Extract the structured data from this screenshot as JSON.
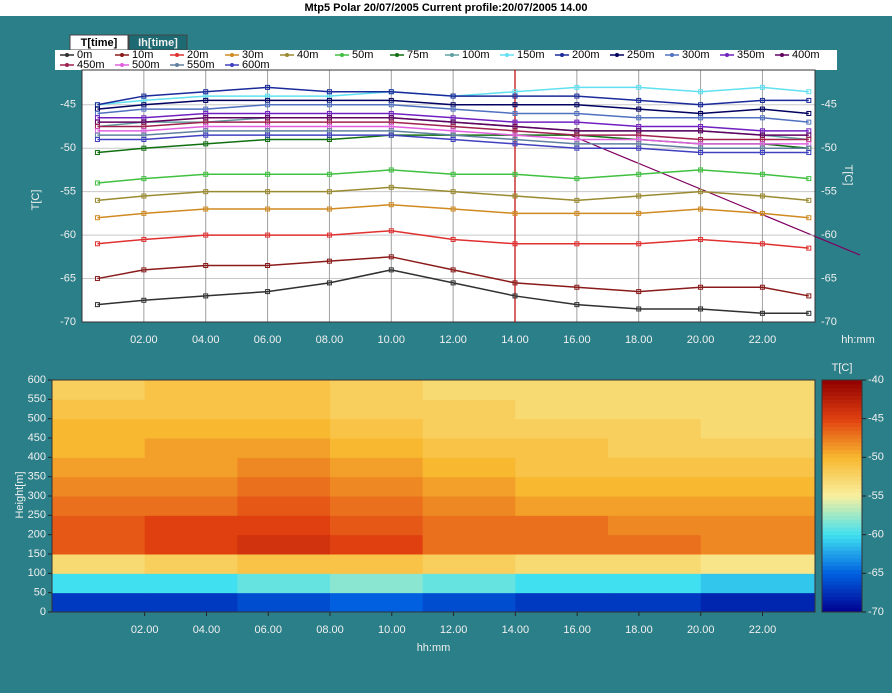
{
  "window_title": "Mtp5 Polar 20/07/2005 Current profile:20/07/2005 14.00",
  "tabs": [
    "T[time]",
    "Ih[time]"
  ],
  "chart_data": [
    {
      "type": "line",
      "xlabel": "hh:mm",
      "ylabel": "T[C]",
      "y2label": "T[C]",
      "x": [
        0.5,
        2,
        4,
        6,
        8,
        10,
        12,
        14,
        16,
        18,
        20,
        22,
        23.5
      ],
      "xlim": [
        0,
        23.7
      ],
      "xticks": [
        {
          "value": 2,
          "label": "02.00"
        },
        {
          "value": 4,
          "label": "04.00"
        },
        {
          "value": 6,
          "label": "06.00"
        },
        {
          "value": 8,
          "label": "08.00"
        },
        {
          "value": 10,
          "label": "10.00"
        },
        {
          "value": 12,
          "label": "12.00"
        },
        {
          "value": 14,
          "label": "14.00"
        },
        {
          "value": 16,
          "label": "16.00"
        },
        {
          "value": 18,
          "label": "18.00"
        },
        {
          "value": 20,
          "label": "20.00"
        },
        {
          "value": 22,
          "label": "22.00"
        }
      ],
      "ylim": [
        -70,
        -41
      ],
      "yticks": [
        -45,
        -50,
        -55,
        -60,
        -65,
        -70
      ],
      "grid": true,
      "marker_x": 14,
      "series": [
        {
          "name": "0m",
          "color": "#303030",
          "values": [
            -68,
            -67.5,
            -67,
            -66.5,
            -65.5,
            -64,
            -65.5,
            -67,
            -68,
            -68.5,
            -68.5,
            -69,
            -69
          ]
        },
        {
          "name": "10m",
          "color": "#8b1a1a",
          "values": [
            -65,
            -64,
            -63.5,
            -63.5,
            -63,
            -62.5,
            -64,
            -65.5,
            -66,
            -66.5,
            -66,
            -66,
            -67
          ]
        },
        {
          "name": "20m",
          "color": "#e03030",
          "values": [
            -61,
            -60.5,
            -60,
            -60,
            -60,
            -59.5,
            -60.5,
            -61,
            -61,
            -61,
            -60.5,
            -61,
            -61.5
          ]
        },
        {
          "name": "30m",
          "color": "#d08a20",
          "values": [
            -58,
            -57.5,
            -57,
            -57,
            -57,
            -56.5,
            -57,
            -57.5,
            -57.5,
            -57.5,
            -57,
            -57.5,
            -58
          ]
        },
        {
          "name": "40m",
          "color": "#9a8a30",
          "values": [
            -56,
            -55.5,
            -55,
            -55,
            -55,
            -54.5,
            -55,
            -55.5,
            -56,
            -55.5,
            -55,
            -55.5,
            -56
          ]
        },
        {
          "name": "50m",
          "color": "#40c040",
          "values": [
            -54,
            -53.5,
            -53,
            -53,
            -53,
            -52.5,
            -53,
            -53,
            -53.5,
            -53,
            -52.5,
            -53,
            -53.5
          ]
        },
        {
          "name": "75m",
          "color": "#107010",
          "values": [
            -50.5,
            -50,
            -49.5,
            -49,
            -49,
            -48.5,
            -48.5,
            -48.5,
            -48.5,
            -49,
            -49.5,
            -49.5,
            -50
          ]
        },
        {
          "name": "100m",
          "color": "#60a0a0",
          "values": [
            -47.5,
            -47,
            -47,
            -46.5,
            -46.5,
            -46.5,
            -47,
            -47.5,
            -48,
            -48,
            -48,
            -48.5,
            -49
          ]
        },
        {
          "name": "150m",
          "color": "#60e0f0",
          "values": [
            -45,
            -44.5,
            -44,
            -44,
            -44,
            -43.5,
            -44,
            -43.5,
            -43,
            -43,
            -43.5,
            -43,
            -43.5
          ]
        },
        {
          "name": "200m",
          "color": "#1a2a9a",
          "values": [
            -45,
            -44,
            -43.5,
            -43,
            -43.5,
            -43.5,
            -44,
            -44,
            -44,
            -44.5,
            -45,
            -44.5,
            -44.5
          ]
        },
        {
          "name": "250m",
          "color": "#000060",
          "values": [
            -45.5,
            -45,
            -44.5,
            -44.5,
            -44.5,
            -44.5,
            -45,
            -45,
            -45,
            -45.5,
            -46,
            -45.5,
            -46
          ]
        },
        {
          "name": "300m",
          "color": "#5070c0",
          "values": [
            -46,
            -45.5,
            -45.5,
            -45,
            -45,
            -45,
            -45.5,
            -46,
            -46,
            -46.5,
            -46.5,
            -46.5,
            -47
          ]
        },
        {
          "name": "350m",
          "color": "#7020c0",
          "values": [
            -46.5,
            -46.5,
            -46,
            -46,
            -46,
            -46,
            -46.5,
            -47,
            -47,
            -47.5,
            -47.5,
            -48,
            -48
          ]
        },
        {
          "name": "400m",
          "color": "#600060",
          "values": [
            -47,
            -47,
            -46.5,
            -46.5,
            -46.5,
            -46.5,
            -47,
            -47.5,
            -48,
            -48,
            -48,
            -48.5,
            -48.5
          ]
        },
        {
          "name": "450m",
          "color": "#a02050",
          "values": [
            -47.5,
            -47.5,
            -47,
            -47,
            -47,
            -47,
            -47.5,
            -48,
            -48.5,
            -48.5,
            -49,
            -49,
            -49
          ]
        },
        {
          "name": "500m",
          "color": "#e060e0",
          "values": [
            -48,
            -48,
            -47.5,
            -47.5,
            -47.5,
            -47.5,
            -48,
            -48.5,
            -49,
            -49,
            -49.5,
            -49.5,
            -49.5
          ]
        },
        {
          "name": "550m",
          "color": "#6080a0",
          "values": [
            -48.5,
            -48.5,
            -48,
            -48,
            -48,
            -48,
            -48.5,
            -49,
            -49.5,
            -49.5,
            -50,
            -50,
            -50
          ]
        },
        {
          "name": "600m",
          "color": "#4040c0",
          "values": [
            -49,
            -49,
            -48.5,
            -48.5,
            -48.5,
            -48.5,
            -49,
            -49.5,
            -50,
            -50,
            -50.5,
            -50.5,
            -50.5
          ]
        }
      ]
    },
    {
      "type": "heatmap",
      "xlabel": "hh:mm",
      "ylabel": "Height[m]",
      "zlabel": "T[C]",
      "x_bins": [
        -1,
        2,
        5,
        8,
        11,
        14,
        17,
        20,
        23.7
      ],
      "y_bins": [
        0,
        50,
        100,
        150,
        200,
        250,
        300,
        350,
        400,
        450,
        500,
        550,
        600
      ],
      "xlim": [
        -1,
        23.7
      ],
      "xticks": [
        {
          "value": 2,
          "label": "02.00"
        },
        {
          "value": 4,
          "label": "04.00"
        },
        {
          "value": 6,
          "label": "06.00"
        },
        {
          "value": 8,
          "label": "08.00"
        },
        {
          "value": 10,
          "label": "10.00"
        },
        {
          "value": 12,
          "label": "12.00"
        },
        {
          "value": 14,
          "label": "14.00"
        },
        {
          "value": 16,
          "label": "16.00"
        },
        {
          "value": 18,
          "label": "18.00"
        },
        {
          "value": 20,
          "label": "20.00"
        },
        {
          "value": 22,
          "label": "22.00"
        }
      ],
      "ylim": [
        0,
        600
      ],
      "yticks": [
        0,
        50,
        100,
        150,
        200,
        250,
        300,
        350,
        400,
        450,
        500,
        550,
        600
      ],
      "zlim": [
        -70,
        -40
      ],
      "zticks": [
        -40,
        -45,
        -50,
        -55,
        -60,
        -65,
        -70
      ],
      "colorscale": [
        "#000090",
        "#0060e0",
        "#40e0f0",
        "#f8f0a0",
        "#f8b830",
        "#e04010",
        "#900000"
      ],
      "z": [
        [
          -67,
          -67,
          -66,
          -65,
          -66,
          -67,
          -67,
          -68
        ],
        [
          -60,
          -60,
          -59,
          -58,
          -59,
          -60,
          -60,
          -61
        ],
        [
          -53,
          -52,
          -51,
          -51,
          -52,
          -53,
          -53,
          -54
        ],
        [
          -46,
          -45,
          -44,
          -45,
          -47,
          -47,
          -47,
          -48
        ],
        [
          -46,
          -45,
          -45,
          -46,
          -47,
          -47,
          -48,
          -48
        ],
        [
          -47,
          -47,
          -46,
          -47,
          -48,
          -49,
          -49,
          -49
        ],
        [
          -48,
          -48,
          -47,
          -48,
          -49,
          -50,
          -50,
          -50
        ],
        [
          -49,
          -49,
          -48,
          -49,
          -50,
          -51,
          -51,
          -51
        ],
        [
          -50,
          -49,
          -49,
          -50,
          -51,
          -51,
          -52,
          -52
        ],
        [
          -50,
          -50,
          -50,
          -51,
          -52,
          -52,
          -52,
          -53
        ],
        [
          -51,
          -51,
          -51,
          -52,
          -52,
          -53,
          -53,
          -53
        ],
        [
          -52,
          -51,
          -51,
          -52,
          -53,
          -53,
          -53,
          -53
        ]
      ]
    }
  ]
}
